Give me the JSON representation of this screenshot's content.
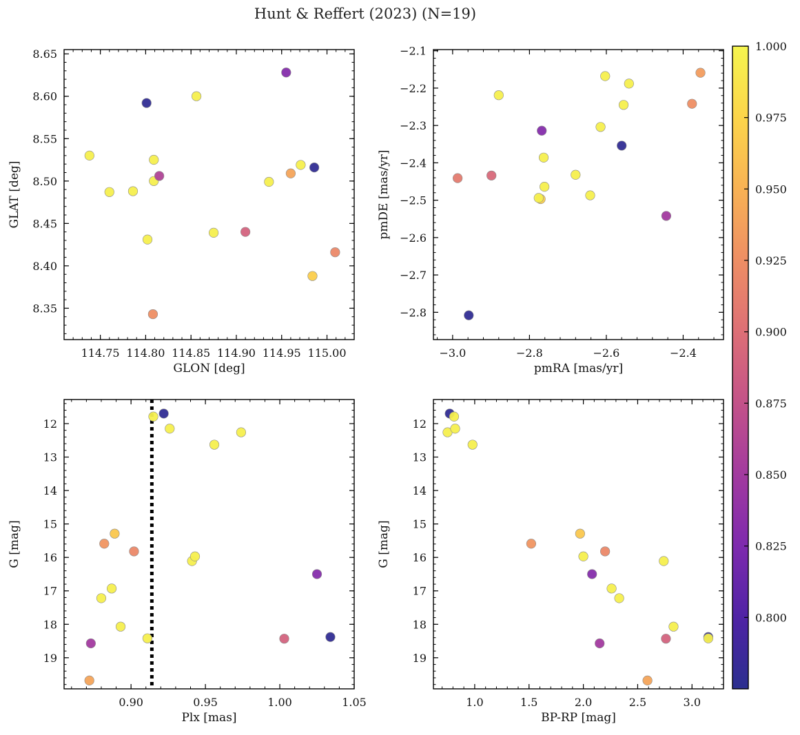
{
  "figure": {
    "title": "Hunt & Reffert (2023) (N=19)"
  },
  "colorbar": {
    "min": 0.775,
    "max": 1.0,
    "ticks": [
      "0.800",
      "0.825",
      "0.850",
      "0.875",
      "0.900",
      "0.925",
      "0.950",
      "0.975",
      "1.000"
    ],
    "tick_values": [
      0.8,
      0.825,
      0.85,
      0.875,
      0.9,
      0.925,
      0.95,
      0.975,
      1.0
    ],
    "colormap": "plasma",
    "cmap_stops": [
      "#2b2f8f",
      "#4f23a5",
      "#7e2aae",
      "#a23a9f",
      "#c35289",
      "#dd6f76",
      "#ee8e64",
      "#f8b254",
      "#fcd54a",
      "#f5f54f"
    ]
  },
  "chart_data": [
    {
      "id": "glon-glat",
      "type": "scatter",
      "xlabel": "GLON [deg]",
      "ylabel": "GLAT [deg]",
      "xlim": [
        114.71,
        115.03
      ],
      "ylim": [
        8.313,
        8.655
      ],
      "xticks": [
        "114.75",
        "114.80",
        "114.85",
        "114.90",
        "114.95",
        "115.00"
      ],
      "xtick_values": [
        114.75,
        114.8,
        114.85,
        114.9,
        114.95,
        115.0
      ],
      "yticks": [
        "8.35",
        "8.40",
        "8.45",
        "8.50",
        "8.55",
        "8.60",
        "8.65"
      ],
      "ytick_values": [
        8.35,
        8.4,
        8.45,
        8.5,
        8.55,
        8.6,
        8.65
      ],
      "points": [
        {
          "x": 114.738,
          "y": 8.53,
          "c": 0.995
        },
        {
          "x": 114.76,
          "y": 8.487,
          "c": 0.995
        },
        {
          "x": 114.786,
          "y": 8.488,
          "c": 0.995
        },
        {
          "x": 114.801,
          "y": 8.592,
          "c": 0.78
        },
        {
          "x": 114.802,
          "y": 8.431,
          "c": 0.995
        },
        {
          "x": 114.808,
          "y": 8.343,
          "c": 0.925
        },
        {
          "x": 114.809,
          "y": 8.525,
          "c": 0.995
        },
        {
          "x": 114.809,
          "y": 8.5,
          "c": 0.995
        },
        {
          "x": 114.815,
          "y": 8.506,
          "c": 0.86
        },
        {
          "x": 114.856,
          "y": 8.6,
          "c": 0.995
        },
        {
          "x": 114.875,
          "y": 8.439,
          "c": 0.995
        },
        {
          "x": 114.91,
          "y": 8.44,
          "c": 0.89
        },
        {
          "x": 114.936,
          "y": 8.499,
          "c": 0.995
        },
        {
          "x": 114.955,
          "y": 8.628,
          "c": 0.83
        },
        {
          "x": 114.96,
          "y": 8.509,
          "c": 0.94
        },
        {
          "x": 114.971,
          "y": 8.519,
          "c": 0.995
        },
        {
          "x": 114.986,
          "y": 8.516,
          "c": 0.78
        },
        {
          "x": 114.984,
          "y": 8.388,
          "c": 0.97
        },
        {
          "x": 115.009,
          "y": 8.416,
          "c": 0.92
        }
      ]
    },
    {
      "id": "pmra-pmde",
      "type": "scatter",
      "xlabel": "pmRA [mas/yr]",
      "ylabel": "pmDE [mas/yr]",
      "xlim": [
        -3.05,
        -2.295
      ],
      "ylim": [
        -2.873,
        -2.097
      ],
      "xticks": [
        "−3.0",
        "−2.8",
        "−2.6",
        "−2.4"
      ],
      "xtick_values": [
        -3.0,
        -2.8,
        -2.6,
        -2.4
      ],
      "yticks": [
        "−2.8",
        "−2.7",
        "−2.6",
        "−2.5",
        "−2.4",
        "−2.3",
        "−2.2",
        "−2.1"
      ],
      "ytick_values": [
        -2.8,
        -2.7,
        -2.6,
        -2.5,
        -2.4,
        -2.3,
        -2.2,
        -2.1
      ],
      "points": [
        {
          "x": -2.987,
          "y": -2.441,
          "c": 0.91
        },
        {
          "x": -2.958,
          "y": -2.808,
          "c": 0.78
        },
        {
          "x": -2.899,
          "y": -2.434,
          "c": 0.895
        },
        {
          "x": -2.88,
          "y": -2.219,
          "c": 0.995
        },
        {
          "x": -2.771,
          "y": -2.497,
          "c": 0.97
        },
        {
          "x": -2.776,
          "y": -2.494,
          "c": 0.995
        },
        {
          "x": -2.768,
          "y": -2.314,
          "c": 0.83
        },
        {
          "x": -2.763,
          "y": -2.386,
          "c": 0.995
        },
        {
          "x": -2.761,
          "y": -2.464,
          "c": 0.995
        },
        {
          "x": -2.68,
          "y": -2.432,
          "c": 0.995
        },
        {
          "x": -2.642,
          "y": -2.487,
          "c": 0.995
        },
        {
          "x": -2.615,
          "y": -2.304,
          "c": 0.995
        },
        {
          "x": -2.603,
          "y": -2.168,
          "c": 0.995
        },
        {
          "x": -2.56,
          "y": -2.354,
          "c": 0.78
        },
        {
          "x": -2.555,
          "y": -2.245,
          "c": 0.995
        },
        {
          "x": -2.541,
          "y": -2.188,
          "c": 0.995
        },
        {
          "x": -2.444,
          "y": -2.542,
          "c": 0.85
        },
        {
          "x": -2.377,
          "y": -2.242,
          "c": 0.925
        },
        {
          "x": -2.355,
          "y": -2.159,
          "c": 0.935
        }
      ]
    },
    {
      "id": "plx-g",
      "type": "scatter",
      "xlabel": "Plx [mas]",
      "ylabel": "G [mag]",
      "xlim": [
        0.855,
        1.05
      ],
      "ylim": [
        19.93,
        11.28
      ],
      "y_inverted": true,
      "vline": 0.914,
      "xticks": [
        "0.90",
        "0.95",
        "1.00",
        "1.05"
      ],
      "xtick_values": [
        0.9,
        0.95,
        1.0,
        1.05
      ],
      "yticks": [
        "12",
        "13",
        "14",
        "15",
        "16",
        "17",
        "18",
        "19"
      ],
      "ytick_values": [
        12,
        13,
        14,
        15,
        16,
        17,
        18,
        19
      ],
      "points": [
        {
          "x": 0.872,
          "y": 19.68,
          "c": 0.94
        },
        {
          "x": 0.873,
          "y": 18.57,
          "c": 0.85
        },
        {
          "x": 0.88,
          "y": 17.22,
          "c": 0.995
        },
        {
          "x": 0.882,
          "y": 15.59,
          "c": 0.93
        },
        {
          "x": 0.887,
          "y": 16.93,
          "c": 0.995
        },
        {
          "x": 0.889,
          "y": 15.29,
          "c": 0.965
        },
        {
          "x": 0.893,
          "y": 18.07,
          "c": 0.995
        },
        {
          "x": 0.902,
          "y": 15.82,
          "c": 0.92
        },
        {
          "x": 0.911,
          "y": 18.42,
          "c": 0.995
        },
        {
          "x": 0.915,
          "y": 11.79,
          "c": 0.995
        },
        {
          "x": 0.922,
          "y": 11.7,
          "c": 0.78
        },
        {
          "x": 0.926,
          "y": 12.15,
          "c": 0.995
        },
        {
          "x": 0.941,
          "y": 16.11,
          "c": 0.995
        },
        {
          "x": 0.943,
          "y": 15.97,
          "c": 0.995
        },
        {
          "x": 0.956,
          "y": 12.63,
          "c": 0.995
        },
        {
          "x": 0.974,
          "y": 12.26,
          "c": 0.995
        },
        {
          "x": 1.003,
          "y": 18.43,
          "c": 0.89
        },
        {
          "x": 1.025,
          "y": 16.5,
          "c": 0.83
        },
        {
          "x": 1.034,
          "y": 18.38,
          "c": 0.78
        }
      ]
    },
    {
      "id": "bprp-g",
      "type": "scatter",
      "xlabel": "BP-RP [mag]",
      "ylabel": "G [mag]",
      "xlim": [
        0.62,
        3.29
      ],
      "ylim": [
        19.93,
        11.28
      ],
      "y_inverted": true,
      "xticks": [
        "1.0",
        "1.5",
        "2.0",
        "2.5",
        "3.0"
      ],
      "xtick_values": [
        1.0,
        1.5,
        2.0,
        2.5,
        3.0
      ],
      "yticks": [
        "12",
        "13",
        "14",
        "15",
        "16",
        "17",
        "18",
        "19"
      ],
      "ytick_values": [
        12,
        13,
        14,
        15,
        16,
        17,
        18,
        19
      ],
      "points": [
        {
          "x": 0.77,
          "y": 11.7,
          "c": 0.78
        },
        {
          "x": 0.75,
          "y": 12.26,
          "c": 0.995
        },
        {
          "x": 0.81,
          "y": 11.79,
          "c": 0.995
        },
        {
          "x": 0.82,
          "y": 12.15,
          "c": 0.995
        },
        {
          "x": 0.98,
          "y": 12.63,
          "c": 0.995
        },
        {
          "x": 1.52,
          "y": 15.59,
          "c": 0.93
        },
        {
          "x": 1.97,
          "y": 15.29,
          "c": 0.965
        },
        {
          "x": 2.0,
          "y": 15.97,
          "c": 0.995
        },
        {
          "x": 2.08,
          "y": 16.5,
          "c": 0.83
        },
        {
          "x": 2.2,
          "y": 15.82,
          "c": 0.92
        },
        {
          "x": 2.15,
          "y": 18.57,
          "c": 0.85
        },
        {
          "x": 2.26,
          "y": 16.93,
          "c": 0.995
        },
        {
          "x": 2.33,
          "y": 17.22,
          "c": 0.995
        },
        {
          "x": 2.59,
          "y": 19.68,
          "c": 0.94
        },
        {
          "x": 2.74,
          "y": 16.11,
          "c": 0.995
        },
        {
          "x": 2.76,
          "y": 18.43,
          "c": 0.89
        },
        {
          "x": 2.83,
          "y": 18.07,
          "c": 0.995
        },
        {
          "x": 3.15,
          "y": 18.38,
          "c": 0.78
        },
        {
          "x": 3.15,
          "y": 18.42,
          "c": 0.995
        }
      ]
    }
  ]
}
